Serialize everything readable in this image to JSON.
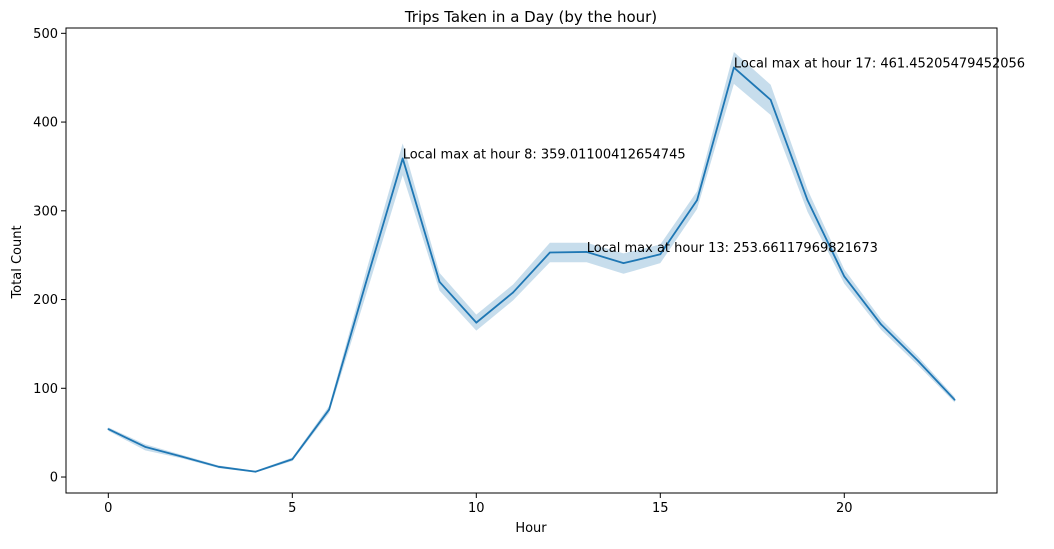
{
  "chart_data": {
    "type": "line",
    "title": "Trips Taken in a Day (by the hour)",
    "xlabel": "Hour",
    "ylabel": "Total Count",
    "xlim": [
      -1.15,
      24.15
    ],
    "ylim": [
      -18,
      506
    ],
    "xticks": [
      0,
      5,
      10,
      15,
      20
    ],
    "yticks": [
      0,
      100,
      200,
      300,
      400,
      500
    ],
    "grid": false,
    "legend": "none",
    "colors": {
      "line": "#1f77b4",
      "band": "#1f77b4",
      "axis": "#000000"
    },
    "series": [
      {
        "x": [
          0,
          1,
          2,
          3,
          4,
          5,
          6,
          7,
          8,
          9,
          10,
          11,
          12,
          13,
          14,
          15,
          16,
          17,
          18,
          19,
          20,
          21,
          22,
          23
        ],
        "values": [
          54,
          34,
          23,
          11.5,
          6,
          20,
          76,
          219,
          359.01,
          220,
          174,
          208,
          253,
          253.66,
          241,
          251,
          312,
          461.45,
          425,
          312,
          226,
          172,
          131,
          87
        ],
        "lower": [
          52,
          30,
          21,
          10,
          5,
          18,
          72,
          205,
          340,
          210,
          165,
          199,
          242,
          242,
          229,
          241,
          302,
          443,
          408,
          299,
          218,
          166,
          126,
          84
        ],
        "upper": [
          56,
          37,
          25,
          13,
          7,
          22,
          80,
          231,
          376,
          230,
          183,
          217,
          264,
          264,
          252,
          262,
          322,
          479,
          442,
          324,
          234,
          178,
          136,
          90
        ]
      }
    ],
    "annotations": [
      {
        "x": 8,
        "y": 359.01100412654745,
        "text": "Local max at hour 8: 359.01100412654745"
      },
      {
        "x": 13,
        "y": 253.66117969821673,
        "text": "Local max at hour 13: 253.66117969821673"
      },
      {
        "x": 17,
        "y": 461.45205479452056,
        "text": "Local max at hour 17: 461.45205479452056"
      }
    ]
  }
}
